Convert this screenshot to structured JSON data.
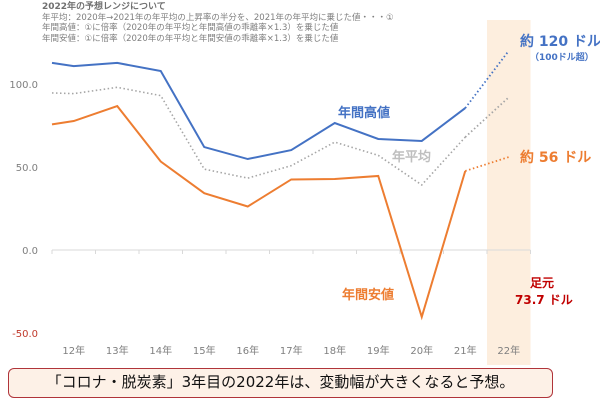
{
  "notes": {
    "title": "2022年の予想レンジについて",
    "lines": [
      "年平均：2020年→2021年の年平均の上昇率の半分を、2021年の年平均に乗じた値・・・①",
      "年間高値：①に倍率（2020年の年平均と年間高値の乖離率×1.3）を乗じた値",
      "年間安値：①に倍率（2020年の年平均と年間安値の乖離率×1.3）を乗じた値"
    ]
  },
  "chart_data": {
    "type": "line",
    "categories": [
      "",
      "12年",
      "13年",
      "14年",
      "15年",
      "16年",
      "17年",
      "18年",
      "19年",
      "20年",
      "21年",
      "22年"
    ],
    "ylim": [
      -50,
      120
    ],
    "yticks": [
      "100.0",
      "50.0",
      "0.0",
      "-50.0"
    ],
    "ytick_values": [
      100,
      50,
      0,
      -50
    ],
    "grid": false,
    "forecast_highlight": "22年",
    "series": [
      {
        "name": "年間高値",
        "color": "#4472c4",
        "style": "solid",
        "values": [
          112.7,
          110.8,
          112.7,
          107.8,
          62.0,
          54.8,
          60.2,
          76.5,
          66.9,
          65.7,
          85.5,
          null
        ],
        "forecast": 120
      },
      {
        "name": "年平均",
        "color": "#a6a6a6",
        "style": "dotted",
        "values": [
          94.6,
          94.2,
          98.0,
          93.0,
          48.7,
          43.3,
          50.8,
          65.0,
          57.0,
          39.2,
          68.0,
          null
        ],
        "forecast": 92
      },
      {
        "name": "年間安値",
        "color": "#ed7d31",
        "style": "solid",
        "values": [
          75.7,
          77.7,
          86.7,
          53.3,
          34.2,
          26.2,
          42.5,
          42.8,
          44.6,
          -40.3,
          47.6,
          null
        ],
        "forecast": 56
      }
    ],
    "annotations": {
      "high_forecast": "約 120 ドル",
      "high_forecast_sub": "（100ドル超）",
      "low_forecast": "約 56 ドル",
      "current_label": "足元",
      "current_value": "73.7 ドル"
    },
    "colors": {
      "highlight_band": "#fdeede",
      "negative_tick": "#c0392b",
      "current": "#c00000"
    }
  },
  "caption": "「コロナ・脱炭素」3年目の2022年は、変動幅が大きくなると予想。"
}
